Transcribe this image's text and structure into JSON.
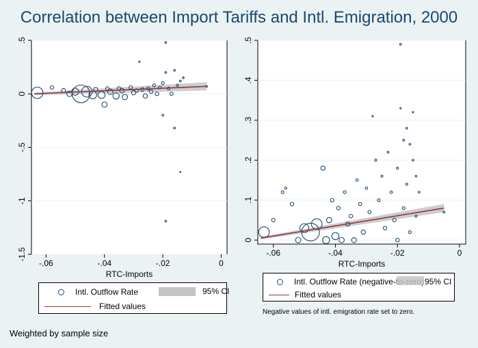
{
  "title": "Correlation between Import Tariffs and Intl. Emigration, 2000",
  "footnote": "Weighted by sample size",
  "colors": {
    "background": "#eaf2f3",
    "plot_bg": "#ffffff",
    "marker": "#1a476f",
    "fit_line": "#90353b",
    "ci_band": "#c4c4c4",
    "title": "#1a476f"
  },
  "left_legend": {
    "marker_label": "Intl. Outflow Rate",
    "ci_label": "95% CI",
    "line_label": "Fitted values"
  },
  "right_legend": {
    "marker_label": "Intl. Outflow Rate (negative-to-zero)",
    "ci_label": "95% CI",
    "line_label": "Fitted values"
  },
  "right_note": "Negative values of intl. emigration rate set to zero.",
  "chart_data": [
    {
      "type": "scatter",
      "xlabel": "RTC-Imports",
      "ylabel": "",
      "xlim": [
        -0.065,
        0.002
      ],
      "ylim": [
        -1.5,
        0.5
      ],
      "xticks": [
        -0.06,
        -0.04,
        -0.02,
        0
      ],
      "xtick_labels": [
        "-.06",
        "-.04",
        "-.02",
        "0"
      ],
      "yticks": [
        -1.5,
        -1,
        -0.5,
        0,
        0.5
      ],
      "ytick_labels": [
        "-1.5",
        "-1",
        "-.5",
        "0",
        ".5"
      ],
      "grid": "horizontal",
      "weighted": true,
      "fitted_line": {
        "x": [
          -0.064,
          -0.005
        ],
        "y": [
          0.0,
          0.07
        ]
      },
      "ci_band": true,
      "series": [
        {
          "name": "Intl. Outflow Rate",
          "points": [
            [
              -0.063,
              0.01,
              3.2
            ],
            [
              -0.058,
              0.06,
              1.0
            ],
            [
              -0.054,
              0.03,
              1.2
            ],
            [
              -0.052,
              0.0,
              1.5
            ],
            [
              -0.05,
              0.02,
              2.0
            ],
            [
              -0.048,
              0.0,
              5.0
            ],
            [
              -0.046,
              0.02,
              3.0
            ],
            [
              -0.044,
              -0.01,
              2.2
            ],
            [
              -0.043,
              0.04,
              1.2
            ],
            [
              -0.041,
              -0.01,
              2.0
            ],
            [
              -0.04,
              -0.1,
              1.5
            ],
            [
              -0.039,
              0.05,
              1.0
            ],
            [
              -0.038,
              0.02,
              1.5
            ],
            [
              -0.036,
              -0.02,
              1.8
            ],
            [
              -0.035,
              0.05,
              1.0
            ],
            [
              -0.034,
              0.03,
              1.3
            ],
            [
              -0.033,
              -0.03,
              1.5
            ],
            [
              -0.031,
              0.06,
              1.0
            ],
            [
              -0.03,
              0.01,
              1.2
            ],
            [
              -0.029,
              0.03,
              1.0
            ],
            [
              -0.028,
              0.3,
              0.4
            ],
            [
              -0.027,
              0.04,
              1.0
            ],
            [
              -0.026,
              -0.02,
              1.2
            ],
            [
              -0.025,
              0.05,
              0.9
            ],
            [
              -0.024,
              0.02,
              1.0
            ],
            [
              -0.023,
              0.08,
              0.8
            ],
            [
              -0.022,
              0.0,
              1.0
            ],
            [
              -0.021,
              0.06,
              0.8
            ],
            [
              -0.02,
              0.1,
              0.8
            ],
            [
              -0.019,
              0.48,
              0.5
            ],
            [
              -0.019,
              0.2,
              0.5
            ],
            [
              -0.018,
              0.05,
              0.8
            ],
            [
              -0.017,
              0.0,
              0.9
            ],
            [
              -0.016,
              0.22,
              0.5
            ],
            [
              -0.016,
              -0.32,
              0.5
            ],
            [
              -0.015,
              0.08,
              0.6
            ],
            [
              -0.014,
              0.12,
              0.5
            ],
            [
              -0.014,
              -0.73,
              0.3
            ],
            [
              -0.019,
              -1.19,
              0.5
            ],
            [
              -0.02,
              -0.2,
              0.5
            ],
            [
              -0.013,
              0.15,
              0.5
            ],
            [
              -0.005,
              0.07,
              0.5
            ]
          ]
        }
      ]
    },
    {
      "type": "scatter",
      "xlabel": "RTC-Imports",
      "ylabel": "",
      "xlim": [
        -0.065,
        0.002
      ],
      "ylim": [
        -0.01,
        0.5
      ],
      "xticks": [
        -0.06,
        -0.04,
        -0.02,
        0
      ],
      "xtick_labels": [
        "-.06",
        "-.04",
        "-.02",
        "0"
      ],
      "yticks": [
        0,
        0.1,
        0.2,
        0.3,
        0.4,
        0.5
      ],
      "ytick_labels": [
        "0",
        ".1",
        ".2",
        ".3",
        ".4",
        ".5"
      ],
      "grid": "horizontal",
      "weighted": true,
      "fitted_line": {
        "x": [
          -0.064,
          -0.005
        ],
        "y": [
          0.005,
          0.08
        ]
      },
      "ci_band": true,
      "series": [
        {
          "name": "Intl. Outflow Rate (negative-to-zero)",
          "points": [
            [
              -0.063,
              0.02,
              3.0
            ],
            [
              -0.06,
              0.05,
              1.0
            ],
            [
              -0.057,
              0.12,
              0.8
            ],
            [
              -0.056,
              0.13,
              0.6
            ],
            [
              -0.054,
              0.09,
              1.0
            ],
            [
              -0.052,
              0.0,
              1.5
            ],
            [
              -0.05,
              0.03,
              2.5
            ],
            [
              -0.048,
              0.02,
              5.0
            ],
            [
              -0.046,
              0.04,
              3.0
            ],
            [
              -0.044,
              0.18,
              1.2
            ],
            [
              -0.043,
              0.0,
              2.0
            ],
            [
              -0.042,
              0.05,
              1.5
            ],
            [
              -0.041,
              0.1,
              1.0
            ],
            [
              -0.04,
              0.01,
              2.0
            ],
            [
              -0.039,
              0.08,
              1.0
            ],
            [
              -0.038,
              0.0,
              1.5
            ],
            [
              -0.037,
              0.12,
              0.8
            ],
            [
              -0.036,
              0.04,
              1.2
            ],
            [
              -0.035,
              0.06,
              1.0
            ],
            [
              -0.034,
              0.0,
              1.4
            ],
            [
              -0.033,
              0.15,
              0.7
            ],
            [
              -0.032,
              0.09,
              0.9
            ],
            [
              -0.031,
              0.02,
              1.2
            ],
            [
              -0.03,
              0.13,
              0.7
            ],
            [
              -0.029,
              0.07,
              0.9
            ],
            [
              -0.028,
              0.31,
              0.4
            ],
            [
              -0.027,
              0.2,
              0.6
            ],
            [
              -0.026,
              0.1,
              0.8
            ],
            [
              -0.025,
              0.16,
              0.6
            ],
            [
              -0.024,
              0.03,
              1.0
            ],
            [
              -0.023,
              0.22,
              0.5
            ],
            [
              -0.022,
              0.12,
              0.7
            ],
            [
              -0.021,
              0.05,
              1.0
            ],
            [
              -0.02,
              0.18,
              0.6
            ],
            [
              -0.02,
              0.0,
              1.0
            ],
            [
              -0.019,
              0.49,
              0.5
            ],
            [
              -0.019,
              0.33,
              0.4
            ],
            [
              -0.018,
              0.25,
              0.5
            ],
            [
              -0.018,
              0.08,
              0.8
            ],
            [
              -0.017,
              0.28,
              0.5
            ],
            [
              -0.017,
              0.14,
              0.6
            ],
            [
              -0.016,
              0.24,
              0.5
            ],
            [
              -0.016,
              0.02,
              0.8
            ],
            [
              -0.015,
              0.32,
              0.4
            ],
            [
              -0.015,
              0.2,
              0.5
            ],
            [
              -0.014,
              0.16,
              0.5
            ],
            [
              -0.014,
              0.06,
              0.6
            ],
            [
              -0.013,
              0.12,
              0.5
            ],
            [
              -0.005,
              0.07,
              0.5
            ]
          ]
        }
      ]
    }
  ]
}
